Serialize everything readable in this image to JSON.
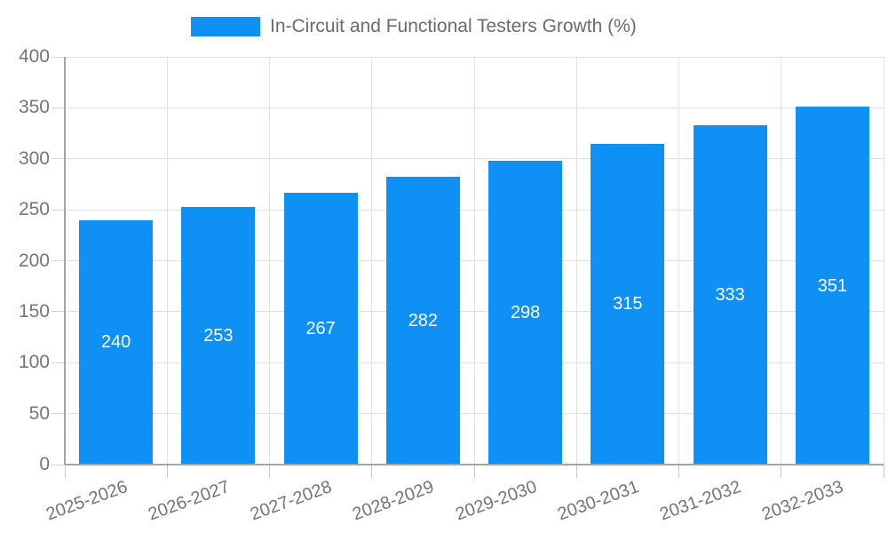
{
  "chart_data": {
    "type": "bar",
    "title": "",
    "legend": {
      "label": "In-Circuit and Functional Testers Growth (%)",
      "position": "top"
    },
    "categories": [
      "2025-2026",
      "2026-2027",
      "2027-2028",
      "2028-2029",
      "2029-2030",
      "2030-2031",
      "2031-2032",
      "2032-2033"
    ],
    "values": [
      240,
      253,
      267,
      282,
      298,
      315,
      333,
      351
    ],
    "yticks": [
      0,
      50,
      100,
      150,
      200,
      250,
      300,
      350,
      400
    ],
    "ylim": [
      0,
      400
    ],
    "xlabel": "",
    "ylabel": "",
    "grid": true,
    "bar_color": "#0F90F5",
    "value_label_color": "#ffffff",
    "axis_label_color": "#757575",
    "legend_text_color": "#6b6b6b"
  }
}
